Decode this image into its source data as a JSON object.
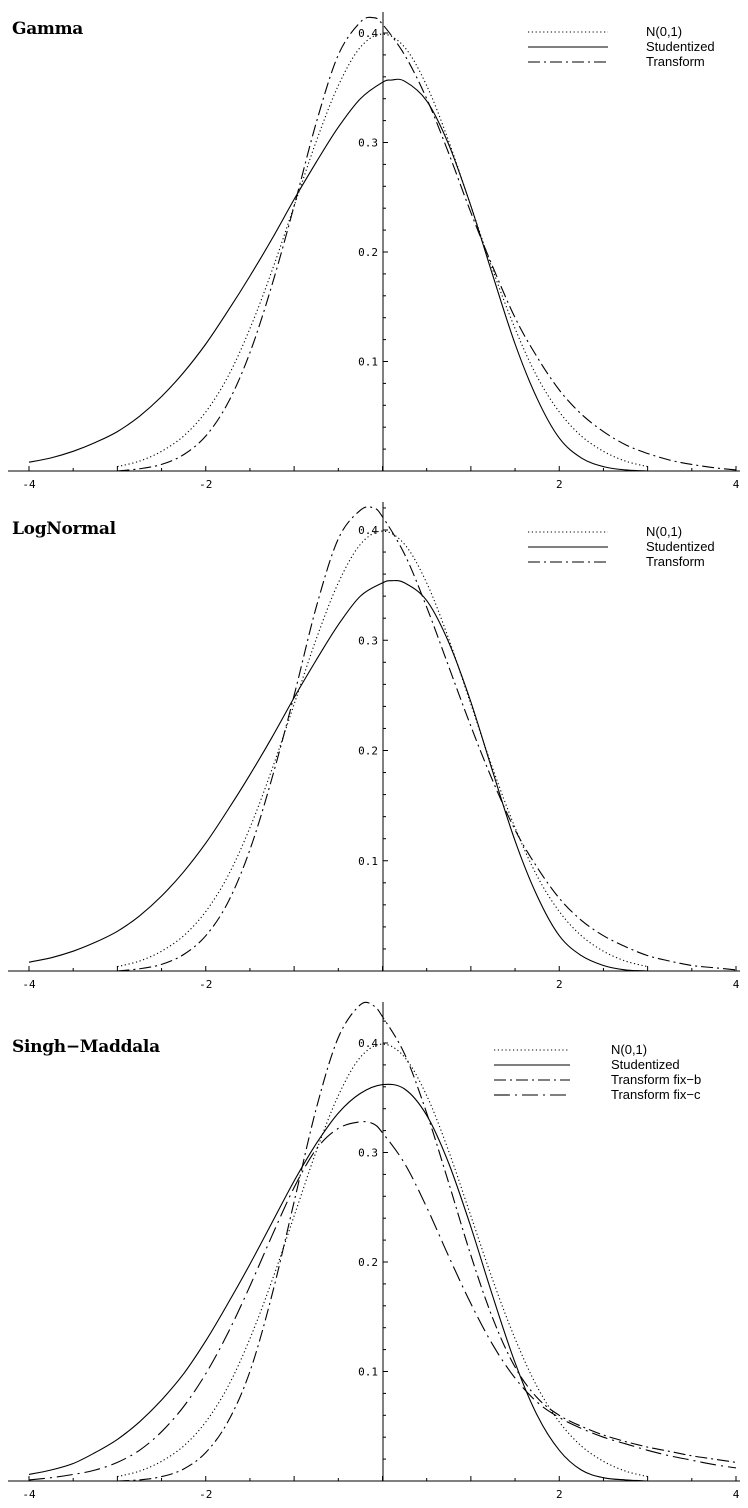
{
  "chart_data": [
    {
      "type": "line",
      "title": "Gamma",
      "xlim": [
        -4,
        4
      ],
      "ylim": [
        0,
        0.42
      ],
      "xticks": [
        "-4",
        "-2",
        "2",
        "4"
      ],
      "xtick_values": [
        -4,
        -2,
        2,
        4
      ],
      "yticks": [
        "0.1",
        "0.2",
        "0.3",
        "0.4"
      ],
      "ytick_values": [
        0.1,
        0.2,
        0.3,
        0.4
      ],
      "legend_position": "top-right",
      "series": [
        {
          "name": "N(0,1)",
          "style": "dotted",
          "x": [
            -3.0,
            -2.75,
            -2.5,
            -2.25,
            -2.0,
            -1.75,
            -1.5,
            -1.25,
            -1.0,
            -0.75,
            -0.5,
            -0.25,
            0.0,
            0.25,
            0.5,
            0.75,
            1.0,
            1.25,
            1.5,
            1.75,
            2.0,
            2.25,
            2.5,
            2.75,
            3.0
          ],
          "y": [
            0.004,
            0.009,
            0.018,
            0.032,
            0.054,
            0.086,
            0.13,
            0.183,
            0.242,
            0.301,
            0.352,
            0.387,
            0.399,
            0.387,
            0.352,
            0.301,
            0.242,
            0.183,
            0.13,
            0.086,
            0.054,
            0.032,
            0.018,
            0.009,
            0.004
          ]
        },
        {
          "name": "Studentized",
          "style": "solid",
          "x": [
            -4.0,
            -3.75,
            -3.5,
            -3.25,
            -3.0,
            -2.75,
            -2.5,
            -2.25,
            -2.0,
            -1.75,
            -1.5,
            -1.25,
            -1.0,
            -0.75,
            -0.5,
            -0.25,
            0.0,
            0.1,
            0.25,
            0.5,
            0.75,
            1.0,
            1.25,
            1.5,
            1.75,
            2.0,
            2.25,
            2.5,
            2.75,
            3.0
          ],
          "y": [
            0.008,
            0.012,
            0.018,
            0.026,
            0.036,
            0.05,
            0.068,
            0.09,
            0.116,
            0.146,
            0.178,
            0.212,
            0.248,
            0.282,
            0.314,
            0.34,
            0.355,
            0.357,
            0.356,
            0.338,
            0.298,
            0.242,
            0.178,
            0.116,
            0.066,
            0.03,
            0.012,
            0.004,
            0.001,
            0.0
          ]
        },
        {
          "name": "Transform",
          "style": "dashdot",
          "x": [
            -3.0,
            -2.75,
            -2.5,
            -2.25,
            -2.0,
            -1.75,
            -1.5,
            -1.25,
            -1.0,
            -0.75,
            -0.5,
            -0.25,
            -0.1,
            0.0,
            0.25,
            0.5,
            0.75,
            1.0,
            1.25,
            1.5,
            1.75,
            2.0,
            2.25,
            2.5,
            2.75,
            3.0,
            3.25,
            3.5,
            3.75,
            4.0
          ],
          "y": [
            0.0,
            0.002,
            0.006,
            0.015,
            0.032,
            0.062,
            0.108,
            0.17,
            0.242,
            0.318,
            0.38,
            0.41,
            0.414,
            0.408,
            0.38,
            0.34,
            0.29,
            0.236,
            0.186,
            0.14,
            0.104,
            0.074,
            0.052,
            0.036,
            0.024,
            0.016,
            0.01,
            0.006,
            0.003,
            0.001
          ]
        }
      ]
    },
    {
      "type": "line",
      "title": "LogNormal",
      "xlim": [
        -4,
        4
      ],
      "ylim": [
        0,
        0.42
      ],
      "xticks": [
        "-4",
        "-2",
        "2",
        "4"
      ],
      "xtick_values": [
        -4,
        -2,
        2,
        4
      ],
      "yticks": [
        "0.1",
        "0.2",
        "0.3",
        "0.4"
      ],
      "ytick_values": [
        0.1,
        0.2,
        0.3,
        0.4
      ],
      "legend_position": "top-right",
      "series": [
        {
          "name": "N(0,1)",
          "style": "dotted",
          "x": [
            -3.0,
            -2.75,
            -2.5,
            -2.25,
            -2.0,
            -1.75,
            -1.5,
            -1.25,
            -1.0,
            -0.75,
            -0.5,
            -0.25,
            0.0,
            0.25,
            0.5,
            0.75,
            1.0,
            1.25,
            1.5,
            1.75,
            2.0,
            2.25,
            2.5,
            2.75,
            3.0
          ],
          "y": [
            0.004,
            0.009,
            0.018,
            0.032,
            0.054,
            0.086,
            0.13,
            0.183,
            0.242,
            0.301,
            0.352,
            0.387,
            0.399,
            0.387,
            0.352,
            0.301,
            0.242,
            0.183,
            0.13,
            0.086,
            0.054,
            0.032,
            0.018,
            0.009,
            0.004
          ]
        },
        {
          "name": "Studentized",
          "style": "solid",
          "x": [
            -4.0,
            -3.75,
            -3.5,
            -3.25,
            -3.0,
            -2.75,
            -2.5,
            -2.25,
            -2.0,
            -1.75,
            -1.5,
            -1.25,
            -1.0,
            -0.75,
            -0.5,
            -0.25,
            0.0,
            0.1,
            0.25,
            0.5,
            0.75,
            1.0,
            1.25,
            1.5,
            1.75,
            2.0,
            2.25,
            2.5,
            2.75,
            3.0
          ],
          "y": [
            0.008,
            0.012,
            0.018,
            0.026,
            0.036,
            0.05,
            0.068,
            0.09,
            0.116,
            0.146,
            0.178,
            0.212,
            0.248,
            0.282,
            0.314,
            0.34,
            0.352,
            0.354,
            0.352,
            0.336,
            0.298,
            0.244,
            0.18,
            0.118,
            0.068,
            0.032,
            0.014,
            0.005,
            0.001,
            0.0
          ]
        },
        {
          "name": "Transform",
          "style": "dashdot",
          "x": [
            -3.0,
            -2.75,
            -2.5,
            -2.25,
            -2.0,
            -1.75,
            -1.5,
            -1.25,
            -1.0,
            -0.75,
            -0.5,
            -0.25,
            -0.1,
            0.0,
            0.25,
            0.5,
            0.75,
            1.0,
            1.25,
            1.5,
            1.75,
            2.0,
            2.25,
            2.5,
            2.75,
            3.0,
            3.25,
            3.5,
            3.75,
            4.0
          ],
          "y": [
            0.0,
            0.002,
            0.006,
            0.015,
            0.032,
            0.062,
            0.11,
            0.175,
            0.25,
            0.33,
            0.392,
            0.418,
            0.42,
            0.412,
            0.378,
            0.33,
            0.276,
            0.222,
            0.172,
            0.128,
            0.094,
            0.066,
            0.046,
            0.032,
            0.022,
            0.014,
            0.009,
            0.005,
            0.003,
            0.001
          ]
        }
      ]
    },
    {
      "type": "line",
      "title": "Singh−Maddala",
      "xlim": [
        -4,
        4
      ],
      "ylim": [
        0,
        0.44
      ],
      "xticks": [
        "-4",
        "-2",
        "2",
        "4"
      ],
      "xtick_values": [
        -4,
        -2,
        2,
        4
      ],
      "yticks": [
        "0.1",
        "0.2",
        "0.3",
        "0.4"
      ],
      "ytick_values": [
        0.1,
        0.2,
        0.3,
        0.4
      ],
      "legend_position": "top-right",
      "series": [
        {
          "name": "N(0,1)",
          "style": "dotted",
          "x": [
            -3.0,
            -2.75,
            -2.5,
            -2.25,
            -2.0,
            -1.75,
            -1.5,
            -1.25,
            -1.0,
            -0.75,
            -0.5,
            -0.25,
            0.0,
            0.25,
            0.5,
            0.75,
            1.0,
            1.25,
            1.5,
            1.75,
            2.0,
            2.25,
            2.5,
            2.75,
            3.0
          ],
          "y": [
            0.004,
            0.009,
            0.018,
            0.032,
            0.054,
            0.086,
            0.13,
            0.183,
            0.242,
            0.301,
            0.352,
            0.387,
            0.399,
            0.387,
            0.352,
            0.301,
            0.242,
            0.183,
            0.13,
            0.086,
            0.054,
            0.032,
            0.018,
            0.009,
            0.004
          ]
        },
        {
          "name": "Studentized",
          "style": "solid",
          "x": [
            -4.0,
            -3.75,
            -3.5,
            -3.25,
            -3.0,
            -2.75,
            -2.5,
            -2.25,
            -2.0,
            -1.75,
            -1.5,
            -1.25,
            -1.0,
            -0.75,
            -0.5,
            -0.25,
            0.0,
            0.25,
            0.5,
            0.75,
            1.0,
            1.25,
            1.5,
            1.75,
            2.0,
            2.25,
            2.5,
            2.75,
            3.0
          ],
          "y": [
            0.006,
            0.01,
            0.016,
            0.026,
            0.038,
            0.054,
            0.074,
            0.098,
            0.128,
            0.162,
            0.198,
            0.236,
            0.274,
            0.308,
            0.336,
            0.354,
            0.362,
            0.358,
            0.334,
            0.29,
            0.232,
            0.168,
            0.108,
            0.06,
            0.028,
            0.01,
            0.003,
            0.001,
            0.0
          ]
        },
        {
          "name": "Transform fix−b",
          "style": "dashdot",
          "x": [
            -3.0,
            -2.75,
            -2.5,
            -2.25,
            -2.0,
            -1.75,
            -1.5,
            -1.25,
            -1.0,
            -0.75,
            -0.5,
            -0.25,
            -0.1,
            0.0,
            0.25,
            0.5,
            0.75,
            1.0,
            1.25,
            1.5,
            1.75,
            2.0,
            2.25,
            2.5,
            2.75,
            3.0,
            3.25,
            3.5,
            3.75,
            4.0
          ],
          "y": [
            0.0,
            0.001,
            0.004,
            0.011,
            0.026,
            0.054,
            0.1,
            0.17,
            0.255,
            0.34,
            0.405,
            0.435,
            0.434,
            0.424,
            0.39,
            0.336,
            0.272,
            0.206,
            0.148,
            0.104,
            0.076,
            0.06,
            0.05,
            0.042,
            0.036,
            0.031,
            0.027,
            0.023,
            0.02,
            0.017
          ]
        },
        {
          "name": "Transform fix−c",
          "style": "dashdot-long",
          "x": [
            -4.0,
            -3.75,
            -3.5,
            -3.25,
            -3.0,
            -2.75,
            -2.5,
            -2.25,
            -2.0,
            -1.75,
            -1.5,
            -1.25,
            -1.0,
            -0.75,
            -0.5,
            -0.25,
            -0.1,
            0.0,
            0.25,
            0.5,
            0.75,
            1.0,
            1.25,
            1.5,
            1.75,
            2.0,
            2.25,
            2.5,
            2.75,
            3.0,
            3.25,
            3.5,
            3.75,
            4.0
          ],
          "y": [
            0.001,
            0.003,
            0.006,
            0.01,
            0.017,
            0.028,
            0.045,
            0.068,
            0.098,
            0.135,
            0.178,
            0.224,
            0.268,
            0.303,
            0.322,
            0.328,
            0.326,
            0.318,
            0.29,
            0.25,
            0.205,
            0.162,
            0.124,
            0.094,
            0.072,
            0.058,
            0.048,
            0.04,
            0.034,
            0.028,
            0.023,
            0.019,
            0.015,
            0.012
          ]
        }
      ]
    }
  ]
}
